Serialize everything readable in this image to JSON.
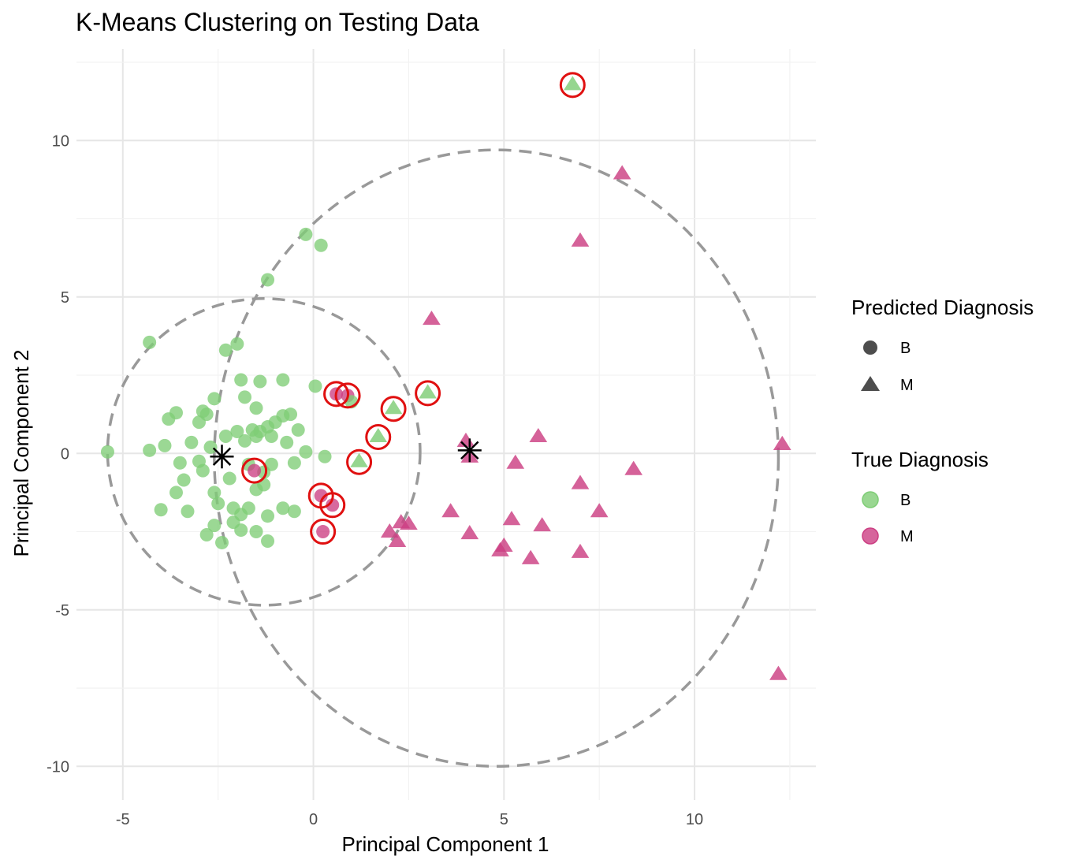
{
  "chart_data": {
    "type": "scatter",
    "title": "K-Means Clustering on Testing Data",
    "xlabel": "Principal Component 1",
    "ylabel": "Principal Component 2",
    "xlim": [
      -6.2,
      12.8
    ],
    "ylim": [
      -11,
      12.5
    ],
    "x_ticks": [
      -5,
      0,
      5,
      10
    ],
    "y_ticks": [
      -10,
      -5,
      0,
      5,
      10
    ],
    "grid": true,
    "colors": {
      "B": "#7fcd76",
      "M": "#cc3f83",
      "misclassified": "#e01010",
      "ellipse": "#999999",
      "center": "#000000",
      "grid_major": "#e6e6e6",
      "grid_minor": "#f2f2f2"
    },
    "legends": [
      {
        "title": "Predicted Diagnosis",
        "entries": [
          {
            "label": "B",
            "shape": "circle"
          },
          {
            "label": "M",
            "shape": "triangle"
          }
        ]
      },
      {
        "title": "True Diagnosis",
        "entries": [
          {
            "label": "B",
            "color": "#7fcd76"
          },
          {
            "label": "M",
            "color": "#cc3f83"
          }
        ]
      }
    ],
    "centers": [
      {
        "x": -2.4,
        "y": -0.1
      },
      {
        "x": 4.1,
        "y": 0.1
      }
    ],
    "ellipses": [
      {
        "cx": -1.3,
        "cy": 0.05,
        "rx": 4.1,
        "ry": 4.9
      },
      {
        "cx": 4.8,
        "cy": -0.15,
        "rx": 7.4,
        "ry": 9.85
      }
    ],
    "points": [
      {
        "x": -5.4,
        "y": 0.05,
        "pred": "B",
        "truth": "B"
      },
      {
        "x": -4.3,
        "y": 3.55,
        "pred": "B",
        "truth": "B"
      },
      {
        "x": -4.3,
        "y": 0.1,
        "pred": "B",
        "truth": "B"
      },
      {
        "x": -4.0,
        "y": -1.8,
        "pred": "B",
        "truth": "B"
      },
      {
        "x": -3.9,
        "y": 0.25,
        "pred": "B",
        "truth": "B"
      },
      {
        "x": -3.8,
        "y": 1.1,
        "pred": "B",
        "truth": "B"
      },
      {
        "x": -3.6,
        "y": 1.3,
        "pred": "B",
        "truth": "B"
      },
      {
        "x": -3.6,
        "y": -1.25,
        "pred": "B",
        "truth": "B"
      },
      {
        "x": -3.5,
        "y": -0.3,
        "pred": "B",
        "truth": "B"
      },
      {
        "x": -3.4,
        "y": -0.85,
        "pred": "B",
        "truth": "B"
      },
      {
        "x": -3.3,
        "y": -1.85,
        "pred": "B",
        "truth": "B"
      },
      {
        "x": -3.2,
        "y": 0.35,
        "pred": "B",
        "truth": "B"
      },
      {
        "x": -3.0,
        "y": 1.0,
        "pred": "B",
        "truth": "B"
      },
      {
        "x": -3.0,
        "y": -0.25,
        "pred": "B",
        "truth": "B"
      },
      {
        "x": -2.9,
        "y": 1.35,
        "pred": "B",
        "truth": "B"
      },
      {
        "x": -2.9,
        "y": -0.55,
        "pred": "B",
        "truth": "B"
      },
      {
        "x": -2.8,
        "y": 1.25,
        "pred": "B",
        "truth": "B"
      },
      {
        "x": -2.8,
        "y": -2.6,
        "pred": "B",
        "truth": "B"
      },
      {
        "x": -2.7,
        "y": 0.2,
        "pred": "B",
        "truth": "B"
      },
      {
        "x": -2.6,
        "y": 1.75,
        "pred": "B",
        "truth": "B"
      },
      {
        "x": -2.6,
        "y": -1.25,
        "pred": "B",
        "truth": "B"
      },
      {
        "x": -2.6,
        "y": -2.3,
        "pred": "B",
        "truth": "B"
      },
      {
        "x": -2.5,
        "y": -1.6,
        "pred": "B",
        "truth": "B"
      },
      {
        "x": -2.4,
        "y": -2.85,
        "pred": "B",
        "truth": "B"
      },
      {
        "x": -2.3,
        "y": 3.3,
        "pred": "B",
        "truth": "B"
      },
      {
        "x": -2.3,
        "y": 0.55,
        "pred": "B",
        "truth": "B"
      },
      {
        "x": -2.2,
        "y": -0.8,
        "pred": "B",
        "truth": "B"
      },
      {
        "x": -2.1,
        "y": -1.75,
        "pred": "B",
        "truth": "B"
      },
      {
        "x": -2.1,
        "y": -2.2,
        "pred": "B",
        "truth": "B"
      },
      {
        "x": -2.0,
        "y": 3.5,
        "pred": "B",
        "truth": "B"
      },
      {
        "x": -2.0,
        "y": 0.7,
        "pred": "B",
        "truth": "B"
      },
      {
        "x": -1.9,
        "y": 2.35,
        "pred": "B",
        "truth": "B"
      },
      {
        "x": -1.9,
        "y": -1.95,
        "pred": "B",
        "truth": "B"
      },
      {
        "x": -1.9,
        "y": -2.45,
        "pred": "B",
        "truth": "B"
      },
      {
        "x": -1.8,
        "y": 1.8,
        "pred": "B",
        "truth": "B"
      },
      {
        "x": -1.8,
        "y": 0.4,
        "pred": "B",
        "truth": "B"
      },
      {
        "x": -1.7,
        "y": -0.35,
        "pred": "B",
        "truth": "B"
      },
      {
        "x": -1.7,
        "y": -1.75,
        "pred": "B",
        "truth": "B"
      },
      {
        "x": -1.6,
        "y": 0.75,
        "pred": "B",
        "truth": "B"
      },
      {
        "x": -1.5,
        "y": 1.45,
        "pred": "B",
        "truth": "B"
      },
      {
        "x": -1.5,
        "y": 0.55,
        "pred": "B",
        "truth": "B"
      },
      {
        "x": -1.5,
        "y": -1.15,
        "pred": "B",
        "truth": "B"
      },
      {
        "x": -1.5,
        "y": -2.5,
        "pred": "B",
        "truth": "B"
      },
      {
        "x": -1.4,
        "y": 2.3,
        "pred": "B",
        "truth": "B"
      },
      {
        "x": -1.4,
        "y": 0.7,
        "pred": "B",
        "truth": "B"
      },
      {
        "x": -1.3,
        "y": -0.6,
        "pred": "B",
        "truth": "B"
      },
      {
        "x": -1.3,
        "y": -1.0,
        "pred": "B",
        "truth": "B"
      },
      {
        "x": -1.2,
        "y": 0.85,
        "pred": "B",
        "truth": "B"
      },
      {
        "x": -1.2,
        "y": -2.0,
        "pred": "B",
        "truth": "B"
      },
      {
        "x": -1.2,
        "y": -2.8,
        "pred": "B",
        "truth": "B"
      },
      {
        "x": -1.2,
        "y": 5.55,
        "pred": "B",
        "truth": "B"
      },
      {
        "x": -1.1,
        "y": 0.55,
        "pred": "B",
        "truth": "B"
      },
      {
        "x": -1.1,
        "y": -0.35,
        "pred": "B",
        "truth": "B"
      },
      {
        "x": -1.0,
        "y": 1.0,
        "pred": "B",
        "truth": "B"
      },
      {
        "x": -0.8,
        "y": 2.35,
        "pred": "B",
        "truth": "B"
      },
      {
        "x": -0.8,
        "y": 1.2,
        "pred": "B",
        "truth": "B"
      },
      {
        "x": -0.8,
        "y": -1.75,
        "pred": "B",
        "truth": "B"
      },
      {
        "x": -0.7,
        "y": 0.35,
        "pred": "B",
        "truth": "B"
      },
      {
        "x": -0.6,
        "y": 1.25,
        "pred": "B",
        "truth": "B"
      },
      {
        "x": -0.5,
        "y": -0.3,
        "pred": "B",
        "truth": "B"
      },
      {
        "x": -0.5,
        "y": -1.85,
        "pred": "B",
        "truth": "B"
      },
      {
        "x": -0.4,
        "y": 0.75,
        "pred": "B",
        "truth": "B"
      },
      {
        "x": -0.2,
        "y": 7.0,
        "pred": "B",
        "truth": "B"
      },
      {
        "x": -0.2,
        "y": 0.05,
        "pred": "B",
        "truth": "B"
      },
      {
        "x": 0.05,
        "y": 2.15,
        "pred": "B",
        "truth": "B"
      },
      {
        "x": 0.2,
        "y": 6.65,
        "pred": "B",
        "truth": "B"
      },
      {
        "x": 0.3,
        "y": -0.1,
        "pred": "B",
        "truth": "B"
      },
      {
        "x": -1.55,
        "y": -0.55,
        "pred": "B",
        "truth": "M",
        "missed": true
      },
      {
        "x": 0.6,
        "y": 1.9,
        "pred": "B",
        "truth": "M",
        "missed": true
      },
      {
        "x": 0.9,
        "y": 1.85,
        "pred": "B",
        "truth": "M",
        "missed": true
      },
      {
        "x": 0.2,
        "y": -1.35,
        "pred": "B",
        "truth": "M",
        "missed": true
      },
      {
        "x": 0.5,
        "y": -1.65,
        "pred": "B",
        "truth": "M",
        "missed": true
      },
      {
        "x": 0.25,
        "y": -2.5,
        "pred": "B",
        "truth": "M",
        "missed": true
      },
      {
        "x": 1.0,
        "y": 1.65,
        "pred": "B",
        "truth": "B"
      },
      {
        "x": 1.2,
        "y": -0.25,
        "pred": "M",
        "truth": "B",
        "missed": true
      },
      {
        "x": 1.7,
        "y": 0.55,
        "pred": "M",
        "truth": "B",
        "missed": true
      },
      {
        "x": 2.1,
        "y": 1.45,
        "pred": "M",
        "truth": "B",
        "missed": true
      },
      {
        "x": 3.0,
        "y": 1.95,
        "pred": "M",
        "truth": "B",
        "missed": true
      },
      {
        "x": 6.8,
        "y": 11.8,
        "pred": "M",
        "truth": "B",
        "missed": true
      },
      {
        "x": 2.0,
        "y": -2.5,
        "pred": "M",
        "truth": "M"
      },
      {
        "x": 2.2,
        "y": -2.8,
        "pred": "M",
        "truth": "M"
      },
      {
        "x": 2.3,
        "y": -2.2,
        "pred": "M",
        "truth": "M"
      },
      {
        "x": 2.5,
        "y": -2.25,
        "pred": "M",
        "truth": "M"
      },
      {
        "x": 3.1,
        "y": 4.3,
        "pred": "M",
        "truth": "M"
      },
      {
        "x": 3.6,
        "y": -1.85,
        "pred": "M",
        "truth": "M"
      },
      {
        "x": 4.0,
        "y": 0.4,
        "pred": "M",
        "truth": "M"
      },
      {
        "x": 4.1,
        "y": -0.1,
        "pred": "M",
        "truth": "M"
      },
      {
        "x": 4.1,
        "y": -2.55,
        "pred": "M",
        "truth": "M"
      },
      {
        "x": 4.9,
        "y": -3.1,
        "pred": "M",
        "truth": "M"
      },
      {
        "x": 5.0,
        "y": -2.95,
        "pred": "M",
        "truth": "M"
      },
      {
        "x": 5.2,
        "y": -2.1,
        "pred": "M",
        "truth": "M"
      },
      {
        "x": 5.3,
        "y": -0.3,
        "pred": "M",
        "truth": "M"
      },
      {
        "x": 5.7,
        "y": -3.35,
        "pred": "M",
        "truth": "M"
      },
      {
        "x": 5.9,
        "y": 0.55,
        "pred": "M",
        "truth": "M"
      },
      {
        "x": 6.0,
        "y": -2.3,
        "pred": "M",
        "truth": "M"
      },
      {
        "x": 7.0,
        "y": 6.8,
        "pred": "M",
        "truth": "M"
      },
      {
        "x": 7.0,
        "y": -0.95,
        "pred": "M",
        "truth": "M"
      },
      {
        "x": 7.0,
        "y": -3.15,
        "pred": "M",
        "truth": "M"
      },
      {
        "x": 7.5,
        "y": -1.85,
        "pred": "M",
        "truth": "M"
      },
      {
        "x": 8.1,
        "y": 8.95,
        "pred": "M",
        "truth": "M"
      },
      {
        "x": 8.4,
        "y": -0.5,
        "pred": "M",
        "truth": "M"
      },
      {
        "x": 12.3,
        "y": 0.3,
        "pred": "M",
        "truth": "M"
      },
      {
        "x": 12.2,
        "y": -7.05,
        "pred": "M",
        "truth": "M"
      }
    ]
  }
}
